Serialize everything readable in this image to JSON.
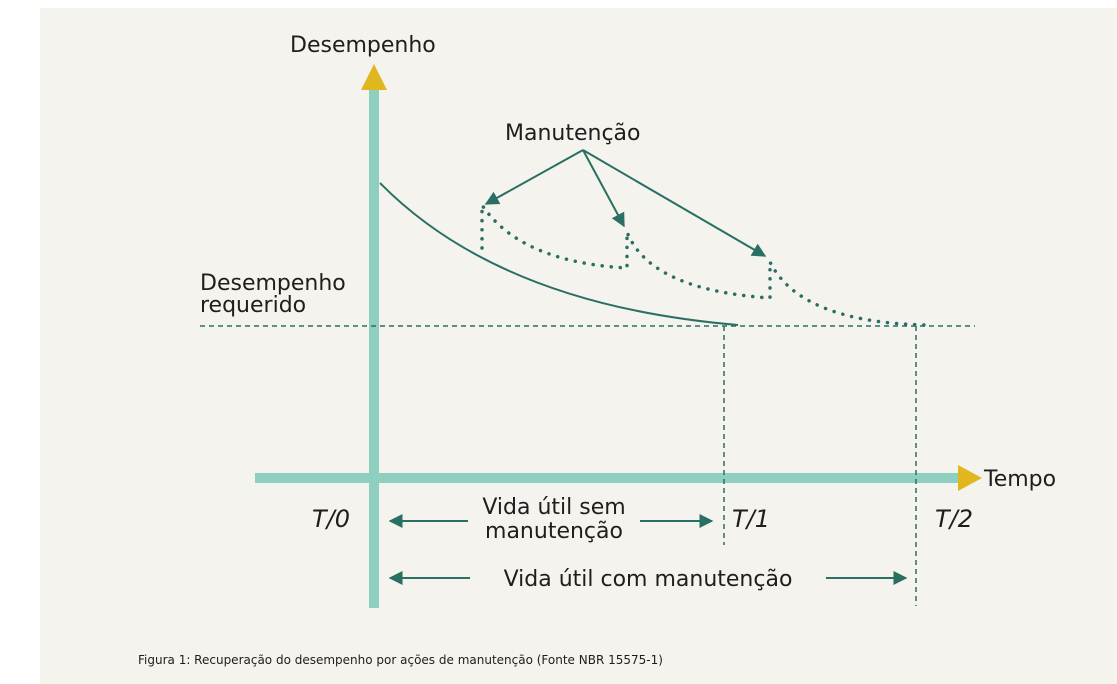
{
  "diagram": {
    "y_axis_label": "Desempenho",
    "x_axis_label": "Tempo",
    "maintenance_label": "Manutenção",
    "required_label": [
      "Desempenho",
      "requerido"
    ],
    "time_marks": [
      "T/0",
      "T/1",
      "T/2"
    ],
    "life_without": [
      "Vida útil sem",
      "manutenção"
    ],
    "life_with": "Vida útil com manutenção"
  },
  "caption": "Figura 1: Recuperação do desempenho por ações de manutenção (Fonte NBR 15575-1)"
}
